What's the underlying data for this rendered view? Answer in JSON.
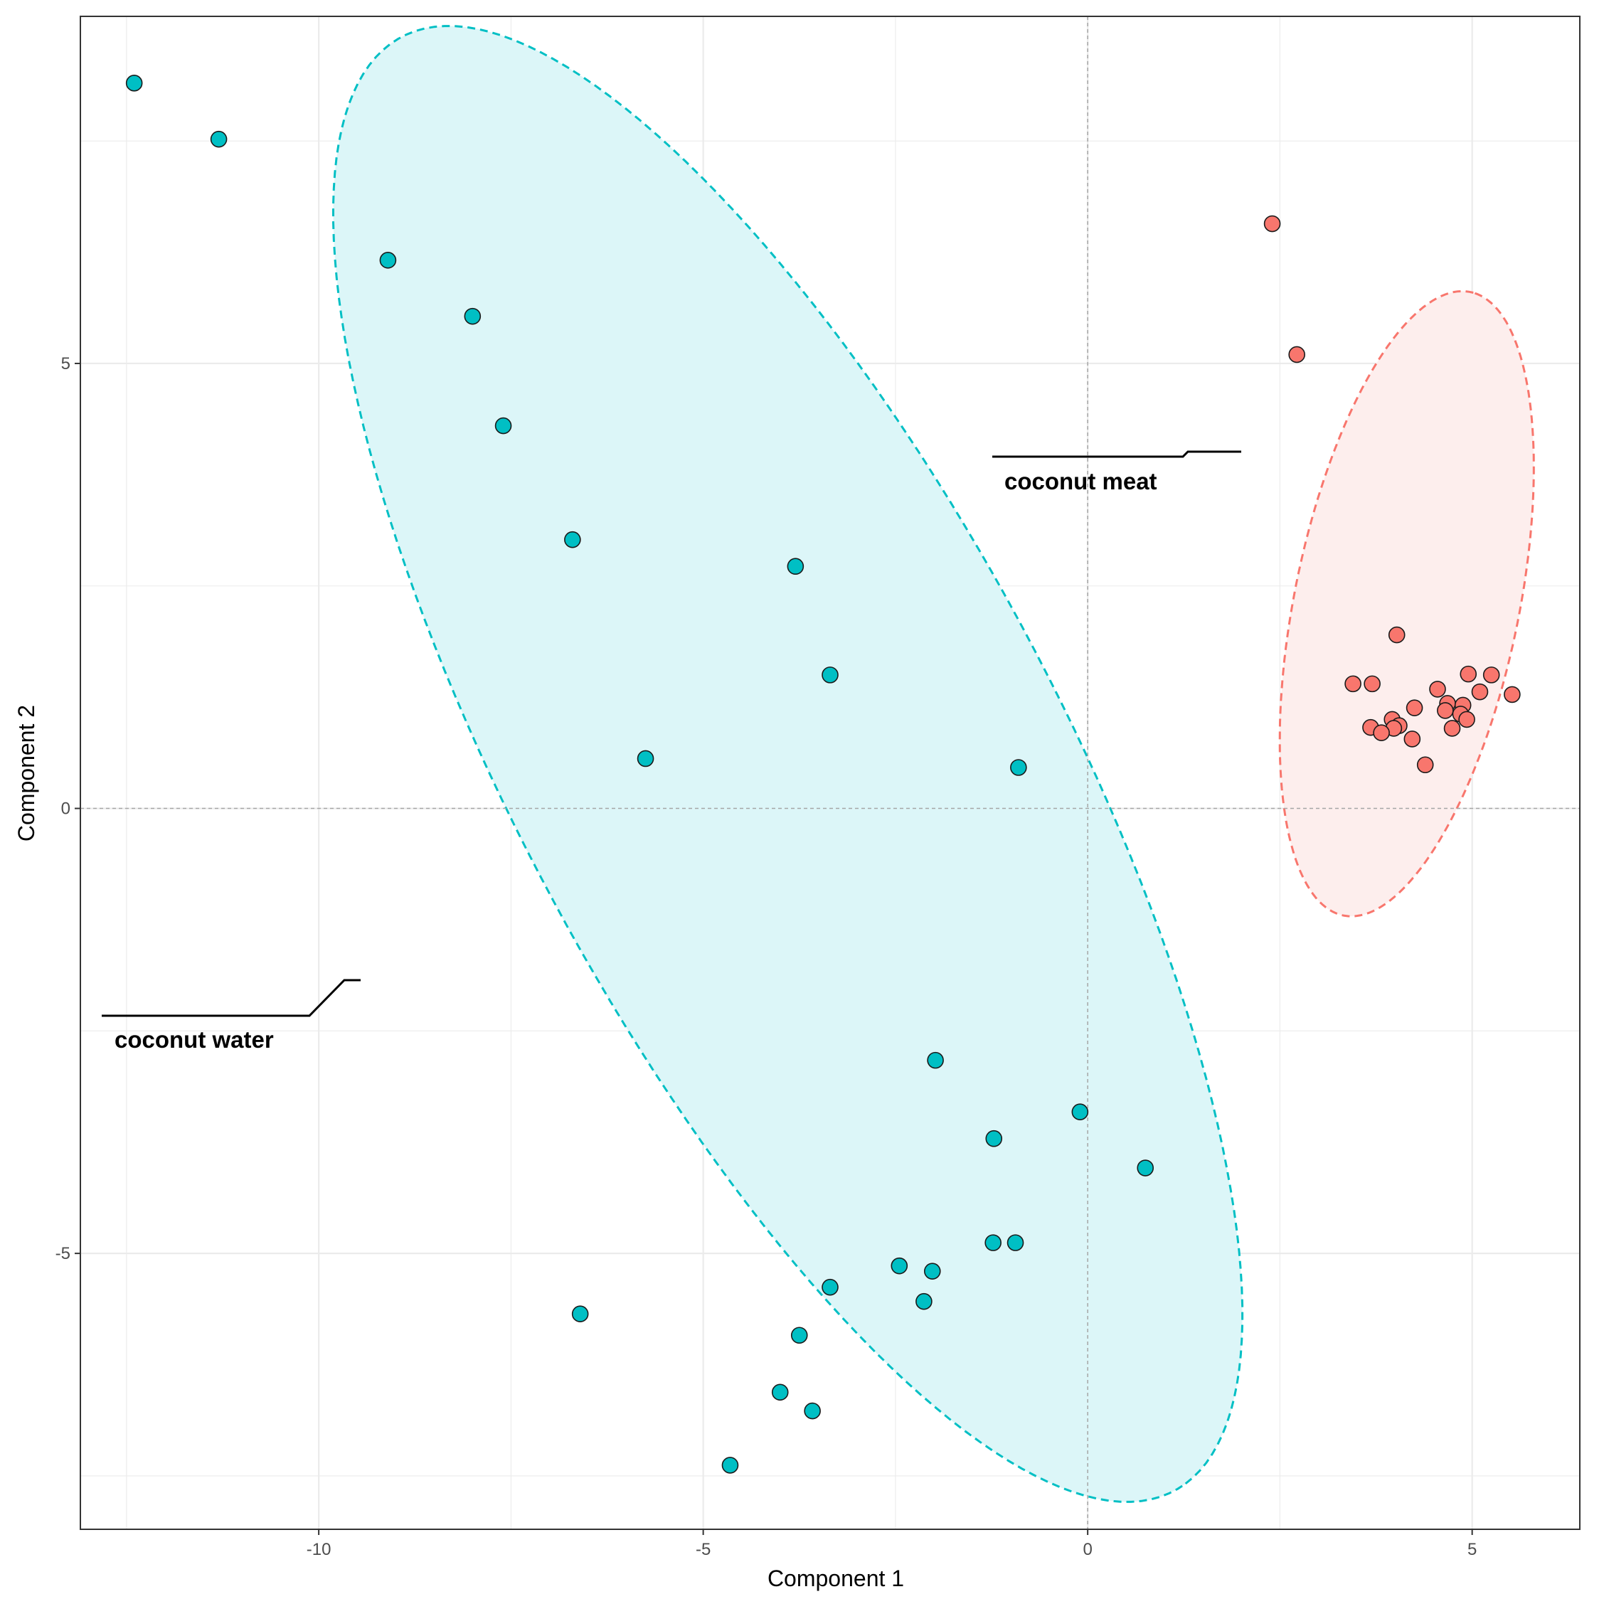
{
  "chart_data": {
    "type": "scatter",
    "title": "",
    "xlabel": "Component 1",
    "ylabel": "Component 2",
    "xlim": [
      -13.1,
      6.4
    ],
    "ylim": [
      -8.1,
      8.9
    ],
    "x_ticks": [
      -10,
      -5,
      0,
      5
    ],
    "y_ticks": [
      -5,
      0,
      5
    ],
    "x_tick_labels": [
      "-10",
      "-5",
      "0",
      "5"
    ],
    "y_tick_labels": [
      "-5",
      "0",
      "5"
    ],
    "grid": true,
    "reference_lines": {
      "x": 0,
      "y": 0
    },
    "series": [
      {
        "name": "coconut water",
        "label": "coconut water",
        "color": "#00BFC4",
        "fill": "#DCF6F8",
        "ellipse": {
          "center": [
            -3.9,
            0.5
          ],
          "semi_major": 9.6,
          "semi_minor": 3.4,
          "angle_deg": -57.4
        },
        "points": [
          {
            "x": -12.4,
            "y": 8.15
          },
          {
            "x": -11.3,
            "y": 7.52
          },
          {
            "x": -9.1,
            "y": 6.16
          },
          {
            "x": -8.0,
            "y": 5.53
          },
          {
            "x": -7.6,
            "y": 4.3
          },
          {
            "x": -6.7,
            "y": 3.02
          },
          {
            "x": -3.8,
            "y": 2.72
          },
          {
            "x": -3.35,
            "y": 1.5
          },
          {
            "x": -5.75,
            "y": 0.56
          },
          {
            "x": -0.9,
            "y": 0.46
          },
          {
            "x": -1.98,
            "y": -2.83
          },
          {
            "x": -0.1,
            "y": -3.41
          },
          {
            "x": -1.22,
            "y": -3.71
          },
          {
            "x": 0.75,
            "y": -4.04
          },
          {
            "x": -1.23,
            "y": -4.88
          },
          {
            "x": -0.94,
            "y": -4.88
          },
          {
            "x": -2.45,
            "y": -5.14
          },
          {
            "x": -2.02,
            "y": -5.2
          },
          {
            "x": -3.35,
            "y": -5.38
          },
          {
            "x": -2.13,
            "y": -5.54
          },
          {
            "x": -6.6,
            "y": -5.68
          },
          {
            "x": -3.75,
            "y": -5.92
          },
          {
            "x": -4.0,
            "y": -6.56
          },
          {
            "x": -3.58,
            "y": -6.77
          },
          {
            "x": -4.65,
            "y": -7.38
          }
        ]
      },
      {
        "name": "coconut meat",
        "label": "coconut meat",
        "color": "#F8766D",
        "fill": "#FDEEED",
        "ellipse": {
          "center": [
            4.15,
            2.3
          ],
          "semi_major": 3.6,
          "semi_minor": 1.45,
          "angle_deg": 76.1
        },
        "points": [
          {
            "x": 2.4,
            "y": 6.57
          },
          {
            "x": 2.72,
            "y": 5.1
          },
          {
            "x": 4.02,
            "y": 1.95
          },
          {
            "x": 3.45,
            "y": 1.4
          },
          {
            "x": 3.7,
            "y": 1.4
          },
          {
            "x": 4.55,
            "y": 1.34
          },
          {
            "x": 4.95,
            "y": 1.51
          },
          {
            "x": 5.25,
            "y": 1.5
          },
          {
            "x": 5.1,
            "y": 1.31
          },
          {
            "x": 5.52,
            "y": 1.28
          },
          {
            "x": 4.68,
            "y": 1.18
          },
          {
            "x": 4.88,
            "y": 1.16
          },
          {
            "x": 4.25,
            "y": 1.13
          },
          {
            "x": 4.65,
            "y": 1.1
          },
          {
            "x": 4.85,
            "y": 1.06
          },
          {
            "x": 4.93,
            "y": 1.0
          },
          {
            "x": 3.96,
            "y": 1.0
          },
          {
            "x": 4.05,
            "y": 0.93
          },
          {
            "x": 3.98,
            "y": 0.9
          },
          {
            "x": 3.68,
            "y": 0.91
          },
          {
            "x": 3.82,
            "y": 0.85
          },
          {
            "x": 4.74,
            "y": 0.9
          },
          {
            "x": 4.22,
            "y": 0.78
          },
          {
            "x": 4.39,
            "y": 0.49
          }
        ]
      }
    ]
  }
}
